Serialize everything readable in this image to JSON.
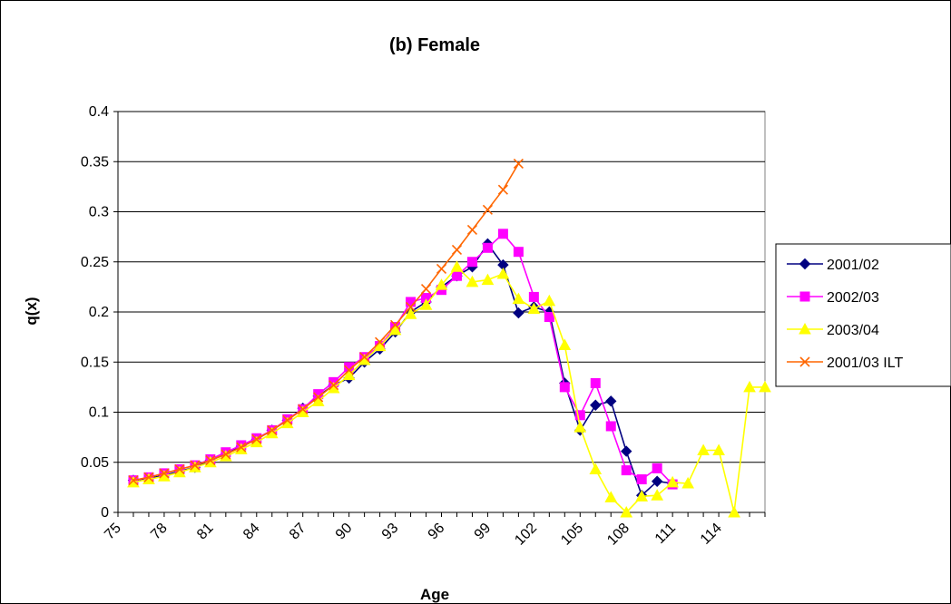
{
  "chart_data": {
    "type": "line",
    "title": "(b) Female",
    "xlabel": "Age",
    "ylabel": "q(x)",
    "xlim": [
      75,
      117
    ],
    "ylim": [
      0,
      0.4
    ],
    "yticks": [
      0,
      0.05,
      0.1,
      0.15,
      0.2,
      0.25,
      0.3,
      0.35,
      0.4
    ],
    "ytick_labels": [
      "0",
      "0.05",
      "0.1",
      "0.15",
      "0.2",
      "0.25",
      "0.3",
      "0.35",
      "0.4"
    ],
    "xtick_labels": [
      "75",
      "78",
      "81",
      "84",
      "87",
      "90",
      "93",
      "96",
      "99",
      "102",
      "105",
      "108",
      "111",
      "114"
    ],
    "grid": "horizontal",
    "legend_position": "right",
    "series": [
      {
        "name": "2001/02",
        "color": "#000080",
        "marker": "diamond",
        "x": [
          76,
          77,
          78,
          79,
          80,
          81,
          82,
          83,
          84,
          85,
          86,
          87,
          88,
          89,
          90,
          91,
          92,
          93,
          94,
          95,
          96,
          97,
          98,
          99,
          100,
          101,
          102,
          103,
          104,
          105,
          106,
          107,
          108,
          109,
          110,
          111
        ],
        "values": [
          0.032,
          0.034,
          0.037,
          0.041,
          0.045,
          0.052,
          0.058,
          0.066,
          0.073,
          0.082,
          0.092,
          0.104,
          0.116,
          0.127,
          0.134,
          0.15,
          0.163,
          0.18,
          0.2,
          0.21,
          0.225,
          0.236,
          0.245,
          0.268,
          0.247,
          0.199,
          0.205,
          0.2,
          0.129,
          0.082,
          0.107,
          0.111,
          0.061,
          0.017,
          0.031,
          0.029
        ]
      },
      {
        "name": "2002/03",
        "color": "#FF00FF",
        "marker": "square",
        "x": [
          76,
          77,
          78,
          79,
          80,
          81,
          82,
          83,
          84,
          85,
          86,
          87,
          88,
          89,
          90,
          91,
          92,
          93,
          94,
          95,
          96,
          97,
          98,
          99,
          100,
          101,
          102,
          103,
          104,
          105,
          106,
          107,
          108,
          109,
          110,
          111
        ],
        "values": [
          0.032,
          0.035,
          0.039,
          0.043,
          0.047,
          0.053,
          0.06,
          0.067,
          0.074,
          0.082,
          0.093,
          0.103,
          0.118,
          0.13,
          0.145,
          0.155,
          0.166,
          0.185,
          0.21,
          0.214,
          0.222,
          0.236,
          0.25,
          0.264,
          0.278,
          0.26,
          0.215,
          0.195,
          0.125,
          0.097,
          0.129,
          0.086,
          0.042,
          0.033,
          0.044,
          0.028
        ]
      },
      {
        "name": "2003/04",
        "color": "#FFFF00",
        "marker": "triangle",
        "x": [
          76,
          77,
          78,
          79,
          80,
          81,
          82,
          83,
          84,
          85,
          86,
          87,
          88,
          89,
          90,
          91,
          92,
          93,
          94,
          95,
          96,
          97,
          98,
          99,
          100,
          101,
          102,
          103,
          104,
          105,
          106,
          107,
          108,
          109,
          110,
          111,
          112,
          113,
          114,
          115,
          116,
          117
        ],
        "values": [
          0.03,
          0.033,
          0.036,
          0.04,
          0.045,
          0.05,
          0.056,
          0.063,
          0.07,
          0.079,
          0.089,
          0.1,
          0.111,
          0.124,
          0.137,
          0.152,
          0.166,
          0.182,
          0.198,
          0.207,
          0.227,
          0.245,
          0.23,
          0.232,
          0.238,
          0.213,
          0.203,
          0.211,
          0.167,
          0.085,
          0.043,
          0.015,
          0.0,
          0.016,
          0.017,
          0.03,
          0.029,
          0.062,
          0.062,
          0.0,
          0.125,
          0.125
        ]
      },
      {
        "name": "2001/03 ILT",
        "color": "#FF6600",
        "marker": "x",
        "x": [
          76,
          77,
          78,
          79,
          80,
          81,
          82,
          83,
          84,
          85,
          86,
          87,
          88,
          89,
          90,
          91,
          92,
          93,
          94,
          95,
          96,
          97,
          98,
          99,
          100,
          101
        ],
        "values": [
          0.032,
          0.035,
          0.039,
          0.043,
          0.047,
          0.052,
          0.058,
          0.065,
          0.073,
          0.082,
          0.092,
          0.103,
          0.115,
          0.127,
          0.142,
          0.155,
          0.17,
          0.187,
          0.205,
          0.223,
          0.243,
          0.262,
          0.282,
          0.302,
          0.322,
          0.348
        ]
      }
    ]
  }
}
